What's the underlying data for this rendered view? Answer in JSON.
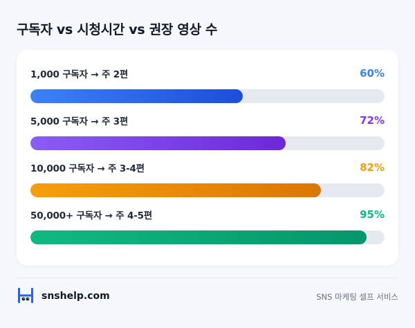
{
  "title": "구독자 vs 시청시간 vs 권장 영상 수",
  "rows": [
    {
      "label": "1,000 구독자 → 주 2편",
      "percent_text": "60%",
      "value": 60,
      "color": "#3b82f6",
      "gradient": [
        "#3b82f6",
        "#1d4ed8"
      ]
    },
    {
      "label": "5,000 구독자 → 주 3편",
      "percent_text": "72%",
      "value": 72,
      "color": "#7c3aed",
      "gradient": [
        "#8b5cf6",
        "#6d28d9"
      ]
    },
    {
      "label": "10,000 구독자 → 주 3-4편",
      "percent_text": "82%",
      "value": 82,
      "color": "#f59e0b",
      "gradient": [
        "#f59e0b",
        "#d97706"
      ]
    },
    {
      "label": "50,000+ 구독자 → 주 4-5편",
      "percent_text": "95%",
      "value": 95,
      "color": "#10b981",
      "gradient": [
        "#10b981",
        "#059669"
      ]
    }
  ],
  "track_color": "#e5e9f0",
  "footer": {
    "brand": "snshelp.com",
    "tagline": "SNS 마케팅 셀프 서비스",
    "logo_icon": "snshelp-logo-icon",
    "logo_color": "#2563eb"
  }
}
